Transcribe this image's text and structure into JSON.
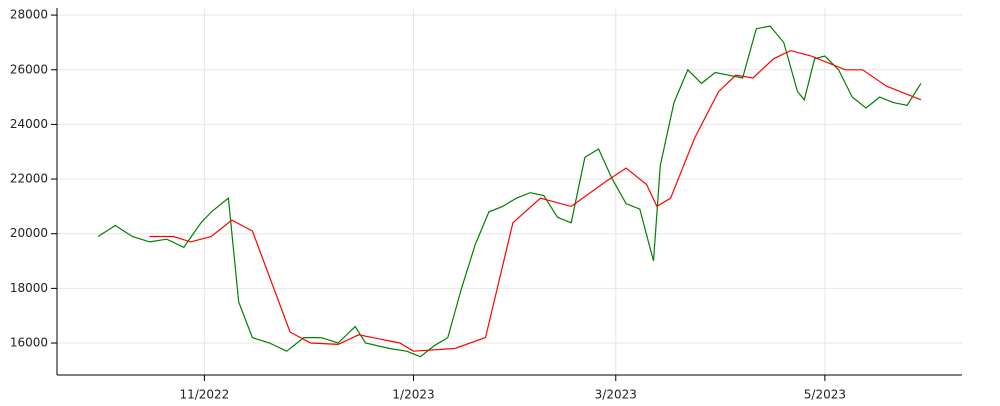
{
  "chart_data": {
    "type": "line",
    "xlim": [
      -12,
      252
    ],
    "ylim": [
      14830,
      28260
    ],
    "xticks": [
      {
        "value": 31,
        "label": "11/2022"
      },
      {
        "value": 92,
        "label": "1/2023"
      },
      {
        "value": 151,
        "label": "3/2023"
      },
      {
        "value": 212,
        "label": "5/2023"
      }
    ],
    "yticks": [
      16000,
      18000,
      20000,
      22000,
      24000,
      26000,
      28000
    ],
    "grid": true,
    "series": [
      {
        "color": "#008000",
        "x": [
          0,
          5,
          10,
          15,
          20,
          25,
          30,
          33,
          38,
          41,
          45,
          50,
          55,
          60,
          65,
          70,
          75,
          78,
          85,
          90,
          94,
          98,
          102,
          106,
          110,
          114,
          118,
          122,
          126,
          130,
          134,
          138,
          142,
          146,
          150,
          154,
          158,
          162,
          164,
          168,
          172,
          176,
          180,
          184,
          188,
          192,
          196,
          200,
          204,
          206,
          209,
          212,
          216,
          220,
          224,
          228,
          232,
          236,
          240
        ],
        "values": [
          19900,
          20300,
          19900,
          19700,
          19800,
          19500,
          20400,
          20800,
          21300,
          17500,
          16200,
          16000,
          15700,
          16200,
          16200,
          16000,
          16600,
          16000,
          15800,
          15700,
          15500,
          15900,
          16200,
          18000,
          19600,
          20800,
          21000,
          21300,
          21500,
          21400,
          20600,
          20400,
          22800,
          23100,
          22000,
          21100,
          20900,
          19000,
          22500,
          24800,
          26000,
          25500,
          25900,
          25800,
          25700,
          27500,
          27600,
          27000,
          25200,
          24900,
          26400,
          26500,
          26000,
          25000,
          24600,
          25000,
          24800,
          24700,
          25500
        ]
      },
      {
        "color": "#ff0000",
        "x": [
          15,
          22,
          27,
          33,
          39,
          45,
          56,
          62,
          70,
          76,
          88,
          92,
          104,
          113,
          121,
          129,
          138,
          148,
          154,
          160,
          163,
          167,
          174,
          181,
          186,
          191,
          197,
          202,
          208,
          218,
          223,
          230,
          240
        ],
        "values": [
          19900,
          19900,
          19700,
          19900,
          20500,
          20100,
          16400,
          16000,
          15950,
          16300,
          16000,
          15700,
          15800,
          16200,
          20400,
          21300,
          21000,
          21900,
          22400,
          21800,
          21000,
          21300,
          23500,
          25200,
          25800,
          25700,
          26400,
          26700,
          26500,
          26000,
          26000,
          25400,
          24900
        ]
      }
    ]
  }
}
